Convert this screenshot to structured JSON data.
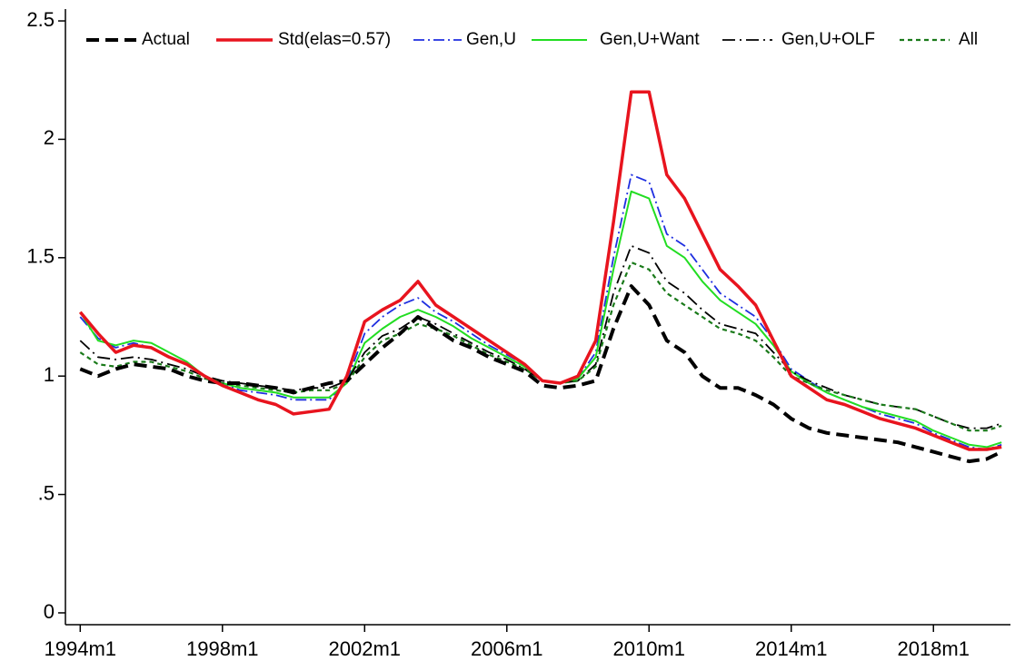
{
  "chart_data": {
    "type": "line",
    "x": [
      "1994m1",
      "1994m7",
      "1995m1",
      "1995m7",
      "1996m1",
      "1996m7",
      "1997m1",
      "1997m7",
      "1998m1",
      "1998m7",
      "1999m1",
      "1999m7",
      "2000m1",
      "2000m7",
      "2001m1",
      "2001m7",
      "2002m1",
      "2002m7",
      "2003m1",
      "2003m7",
      "2004m1",
      "2004m7",
      "2005m1",
      "2005m7",
      "2006m1",
      "2006m7",
      "2007m1",
      "2007m7",
      "2008m1",
      "2008m7",
      "2009m1",
      "2009m7",
      "2010m1",
      "2010m7",
      "2011m1",
      "2011m7",
      "2012m1",
      "2012m7",
      "2013m1",
      "2013m7",
      "2014m1",
      "2014m7",
      "2015m1",
      "2015m7",
      "2016m1",
      "2016m7",
      "2017m1",
      "2017m7",
      "2018m1",
      "2018m7",
      "2019m1",
      "2019m7",
      "2019m12"
    ],
    "series": [
      {
        "name": "Actual",
        "color": "#000000",
        "values": [
          1.03,
          1.0,
          1.03,
          1.05,
          1.04,
          1.03,
          1.0,
          0.98,
          0.97,
          0.97,
          0.96,
          0.95,
          0.93,
          0.95,
          0.97,
          0.98,
          1.05,
          1.12,
          1.18,
          1.25,
          1.2,
          1.15,
          1.12,
          1.08,
          1.05,
          1.02,
          0.96,
          0.95,
          0.96,
          0.98,
          1.2,
          1.38,
          1.3,
          1.15,
          1.1,
          1.0,
          0.95,
          0.95,
          0.92,
          0.88,
          0.82,
          0.78,
          0.76,
          0.75,
          0.74,
          0.73,
          0.72,
          0.7,
          0.68,
          0.66,
          0.64,
          0.65,
          0.68
        ]
      },
      {
        "name": "Std(elas=0.57)",
        "color": "#e8141e",
        "values": [
          1.27,
          1.18,
          1.1,
          1.13,
          1.12,
          1.08,
          1.05,
          1.0,
          0.96,
          0.93,
          0.9,
          0.88,
          0.84,
          0.85,
          0.86,
          1.0,
          1.23,
          1.28,
          1.32,
          1.4,
          1.3,
          1.25,
          1.2,
          1.15,
          1.1,
          1.05,
          0.98,
          0.97,
          1.0,
          1.15,
          1.65,
          2.2,
          2.2,
          1.85,
          1.75,
          1.6,
          1.45,
          1.38,
          1.3,
          1.15,
          1.0,
          0.95,
          0.9,
          0.88,
          0.85,
          0.82,
          0.8,
          0.78,
          0.75,
          0.72,
          0.69,
          0.69,
          0.7
        ]
      },
      {
        "name": "Gen,U",
        "color": "#1f2fe0",
        "values": [
          1.25,
          1.16,
          1.12,
          1.14,
          1.12,
          1.08,
          1.05,
          1.0,
          0.97,
          0.94,
          0.93,
          0.92,
          0.9,
          0.9,
          0.9,
          0.98,
          1.18,
          1.25,
          1.3,
          1.33,
          1.27,
          1.23,
          1.18,
          1.13,
          1.09,
          1.05,
          0.98,
          0.97,
          0.99,
          1.1,
          1.5,
          1.85,
          1.82,
          1.6,
          1.55,
          1.45,
          1.35,
          1.3,
          1.25,
          1.15,
          1.03,
          0.98,
          0.93,
          0.9,
          0.87,
          0.84,
          0.82,
          0.8,
          0.76,
          0.73,
          0.7,
          0.69,
          0.71
        ]
      },
      {
        "name": "Gen,U+Want",
        "color": "#22dd22",
        "values": [
          1.27,
          1.15,
          1.13,
          1.15,
          1.14,
          1.1,
          1.06,
          1.0,
          0.97,
          0.95,
          0.94,
          0.93,
          0.91,
          0.91,
          0.91,
          0.97,
          1.14,
          1.2,
          1.25,
          1.28,
          1.25,
          1.21,
          1.16,
          1.12,
          1.08,
          1.04,
          0.98,
          0.97,
          0.99,
          1.08,
          1.45,
          1.78,
          1.75,
          1.55,
          1.5,
          1.4,
          1.32,
          1.27,
          1.22,
          1.13,
          1.02,
          0.97,
          0.93,
          0.9,
          0.87,
          0.85,
          0.83,
          0.81,
          0.77,
          0.74,
          0.71,
          0.7,
          0.72
        ]
      },
      {
        "name": "Gen,U+OLF",
        "color": "#000000",
        "values": [
          1.15,
          1.08,
          1.07,
          1.08,
          1.07,
          1.05,
          1.03,
          1.0,
          0.98,
          0.97,
          0.96,
          0.95,
          0.94,
          0.95,
          0.95,
          0.98,
          1.1,
          1.17,
          1.2,
          1.25,
          1.22,
          1.18,
          1.14,
          1.1,
          1.07,
          1.03,
          0.98,
          0.97,
          0.98,
          1.05,
          1.35,
          1.55,
          1.52,
          1.4,
          1.35,
          1.28,
          1.22,
          1.2,
          1.18,
          1.1,
          1.02,
          0.98,
          0.95,
          0.92,
          0.9,
          0.88,
          0.87,
          0.86,
          0.83,
          0.8,
          0.78,
          0.78,
          0.8
        ]
      },
      {
        "name": "All",
        "color": "#1a7a1a",
        "values": [
          1.1,
          1.05,
          1.04,
          1.06,
          1.06,
          1.04,
          1.02,
          0.99,
          0.97,
          0.96,
          0.95,
          0.94,
          0.93,
          0.94,
          0.94,
          0.97,
          1.08,
          1.15,
          1.18,
          1.22,
          1.2,
          1.17,
          1.13,
          1.09,
          1.06,
          1.03,
          0.98,
          0.97,
          0.98,
          1.04,
          1.3,
          1.48,
          1.45,
          1.35,
          1.3,
          1.25,
          1.2,
          1.18,
          1.15,
          1.08,
          1.0,
          0.97,
          0.94,
          0.92,
          0.9,
          0.88,
          0.87,
          0.86,
          0.83,
          0.8,
          0.77,
          0.77,
          0.79
        ]
      }
    ],
    "xlim": [
      "1993m8",
      "2020m3"
    ],
    "xticks": [
      "1994m1",
      "1998m1",
      "2002m1",
      "2006m1",
      "2010m1",
      "2014m1",
      "2018m1"
    ],
    "ylim": [
      -0.05,
      2.55
    ],
    "yticks": [
      0,
      {
        "value": 0.5,
        "label": ".5"
      },
      1,
      1.5,
      2,
      2.5
    ],
    "legend": "top"
  }
}
